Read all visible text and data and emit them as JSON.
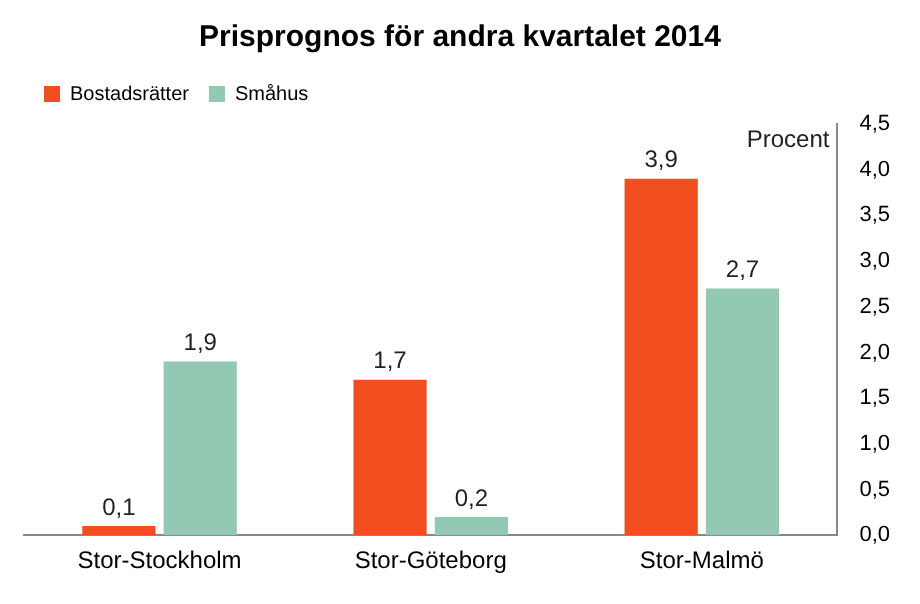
{
  "chart_data": {
    "type": "bar",
    "title": "Prisprognos för andra kvartalet 2014",
    "ylabel": "Procent",
    "categories": [
      "Stor-Stockholm",
      "Stor-Göteborg",
      "Stor-Malmö"
    ],
    "series": [
      {
        "name": "Bostadsrätter",
        "color": "#f04e1e",
        "values": [
          0.1,
          1.7,
          3.9
        ],
        "value_labels": [
          "0,1",
          "1,7",
          "3,9"
        ]
      },
      {
        "name": "Småhus",
        "color": "#93c8b2",
        "values": [
          1.9,
          0.2,
          2.7
        ],
        "value_labels": [
          "1,9",
          "0,2",
          "2,7"
        ]
      }
    ],
    "ylim": [
      0,
      4.5
    ],
    "yticks": [
      {
        "value": 0,
        "label": "0,0"
      },
      {
        "value": 0.5,
        "label": "0,5"
      },
      {
        "value": 1,
        "label": "1,0"
      },
      {
        "value": 1.5,
        "label": "1,5"
      },
      {
        "value": 2,
        "label": "2,0"
      },
      {
        "value": 2.5,
        "label": "2,5"
      },
      {
        "value": 3,
        "label": "3,0"
      },
      {
        "value": 3.5,
        "label": "3,5"
      },
      {
        "value": 4,
        "label": "4,0"
      },
      {
        "value": 4.5,
        "label": "4,5"
      }
    ],
    "legend": "top left",
    "grid": false
  }
}
